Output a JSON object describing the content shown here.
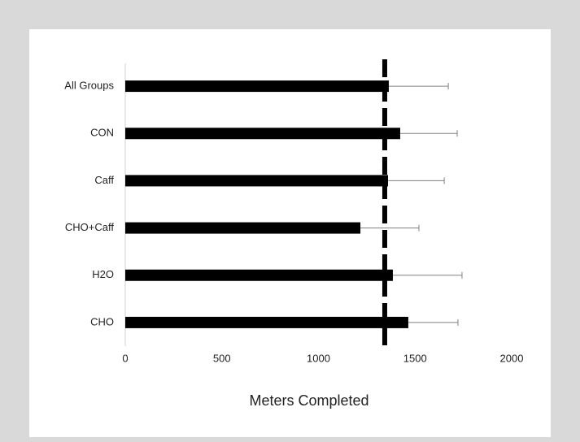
{
  "chart_data": {
    "type": "bar",
    "orientation": "horizontal",
    "x_label": "Meters Completed",
    "categories": [
      "All Groups",
      "CON",
      "Caff",
      "CHO+Caff",
      "H2O",
      "CHO"
    ],
    "values": [
      1364,
      1423,
      1360,
      1217,
      1385,
      1465
    ],
    "errors": [
      308,
      295,
      291,
      303,
      358,
      257
    ],
    "color": "#000000",
    "error_color": "#808080",
    "reference_line": 1343,
    "xlim": [
      0,
      2000
    ],
    "xticks": [
      0,
      500,
      1000,
      1500,
      2000
    ]
  }
}
